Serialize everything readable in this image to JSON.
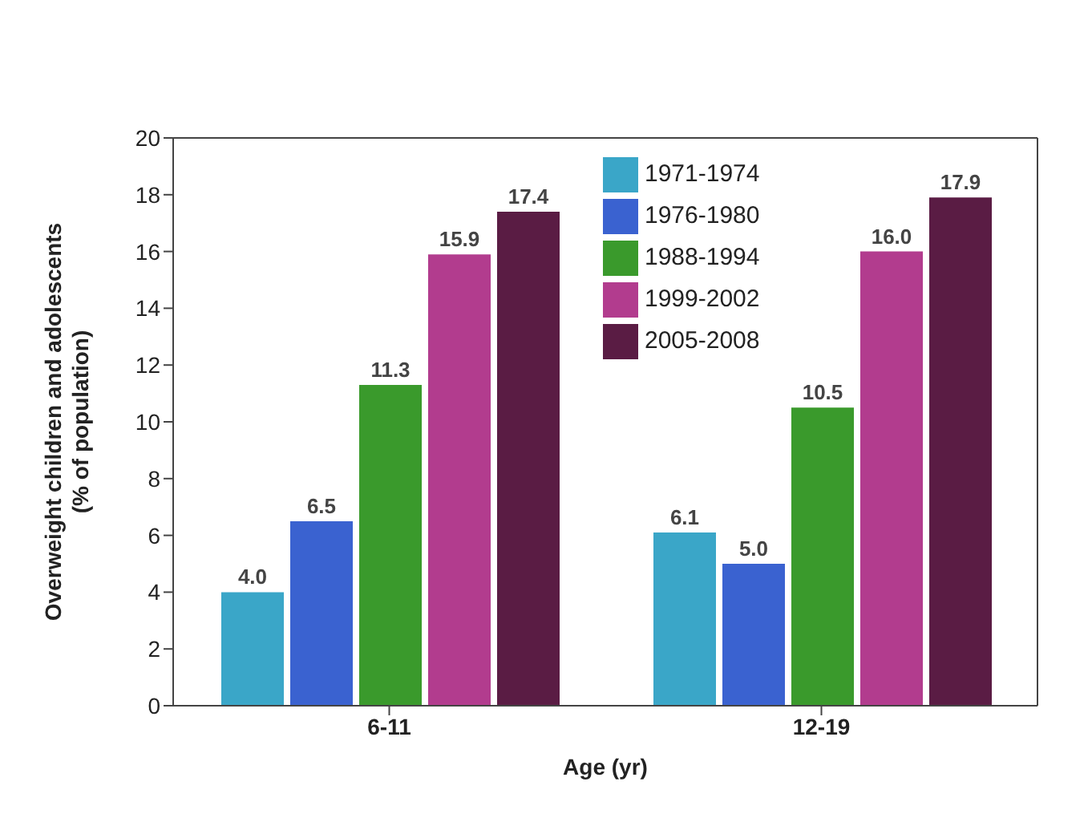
{
  "chart_data": {
    "type": "bar",
    "xlabel": "Age (yr)",
    "ylabel": "Overweight children and adolescents\n(% of population)",
    "categories": [
      "6-11",
      "12-19"
    ],
    "series": [
      {
        "name": "1971-1974",
        "color": "#3aa6c8",
        "values": [
          4.0,
          6.1
        ],
        "value_labels": [
          "4.0",
          "6.1"
        ]
      },
      {
        "name": "1976-1980",
        "color": "#3a62d0",
        "values": [
          6.5,
          5.0
        ],
        "value_labels": [
          "6.5",
          "5.0"
        ]
      },
      {
        "name": "1988-1994",
        "color": "#3a9a2c",
        "values": [
          11.3,
          10.5
        ],
        "value_labels": [
          "11.3",
          "10.5"
        ]
      },
      {
        "name": "1999-2002",
        "color": "#b23c8e",
        "values": [
          15.9,
          16.0
        ],
        "value_labels": [
          "15.9",
          "16.0"
        ]
      },
      {
        "name": "2005-2008",
        "color": "#5a1c44",
        "values": [
          17.4,
          17.9
        ],
        "value_labels": [
          "17.4",
          "17.9"
        ]
      }
    ],
    "ylim": [
      0,
      20
    ],
    "yticks": [
      0,
      2,
      4,
      6,
      8,
      10,
      12,
      14,
      16,
      18,
      20
    ],
    "grid": false,
    "legend": "top",
    "data_labels": true
  }
}
